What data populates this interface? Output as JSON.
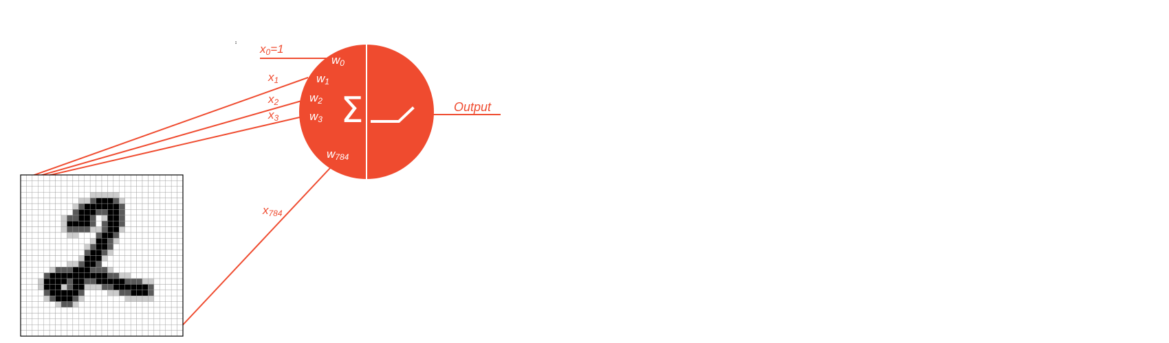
{
  "colors": {
    "accent": "#ef4b2f",
    "neuron_text": "#ffffff",
    "grid_line": "#9a9a9a",
    "ink": "#000000"
  },
  "inputs": {
    "x0": "x0=1",
    "x1": "x1",
    "x2": "x2",
    "x3": "x3",
    "x784": "x784"
  },
  "weights": {
    "w0": "w0",
    "w1": "w1",
    "w2": "w2",
    "w3": "w3",
    "w784": "w784"
  },
  "neuron": {
    "sum_symbol": "Σ",
    "activation": "relu-step"
  },
  "output_label": "Output",
  "digit": {
    "value": "2",
    "grid_size": [
      28,
      28
    ]
  }
}
